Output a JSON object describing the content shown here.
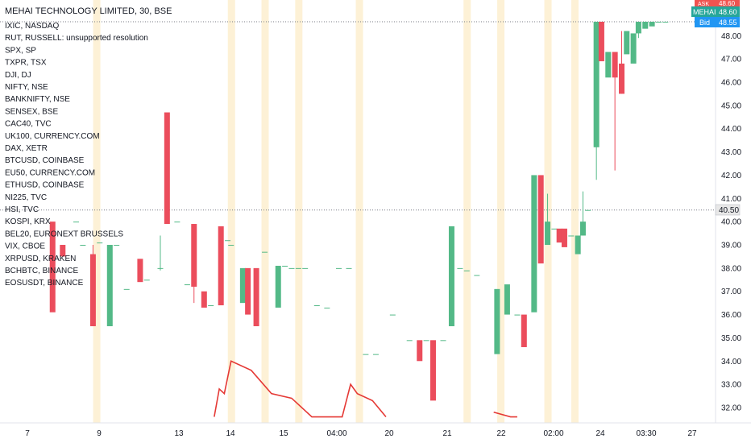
{
  "title": "MEHAI TECHNOLOGY LIMITED, 30, BSE",
  "legend": [
    "IXIC, NASDAQ",
    "RUT, RUSSELL: unsupported resolution",
    "SPX, SP",
    "TXPR, TSX",
    "DJI, DJ",
    "NIFTY, NSE",
    "BANKNIFTY, NSE",
    "SENSEX, BSE",
    "CAC40, TVC",
    "UK100, CURRENCY.COM",
    "DAX, XETR",
    "BTCUSD, COINBASE",
    "EU50, CURRENCY.COM",
    "ETHUSD, COINBASE",
    "NI225, TVC",
    "HSI, TVC",
    "KOSPI, KRX",
    "BEL20, EURONEXT BRUSSELS",
    "VIX, CBOE",
    "XRPUSD, KRAKEN",
    "BCHBTC, BINANCE",
    "EOSUSDT, BINANCE"
  ],
  "badges": {
    "ask": {
      "label": "ASK",
      "value": "48.60",
      "color": "#ef5350"
    },
    "symbol": {
      "label": "MEHAI",
      "value": "48.60",
      "color": "#26a69a"
    },
    "bid": {
      "label": "Bid",
      "value": "48.55",
      "color": "#2196f3"
    },
    "price_marker": "40.50"
  },
  "colors": {
    "up": "#53b987",
    "down": "#eb4d5c",
    "session": "#fdf1d6",
    "overlay": "#e53935",
    "dotted": "#787b86"
  },
  "chart_data": {
    "type": "candlestick",
    "title": "MEHAI TECHNOLOGY LIMITED, 30, BSE",
    "ylim": [
      31.6,
      48.6
    ],
    "yticks": [
      32,
      33,
      34,
      35,
      36,
      37,
      38,
      39,
      40,
      41,
      42,
      43,
      44,
      45,
      46,
      47,
      48
    ],
    "xticks": [
      "7",
      "9",
      "13",
      "14",
      "15",
      "04:00",
      "20",
      "21",
      "22",
      "02:00",
      "24",
      "03:30",
      "27"
    ],
    "session_breaks": [
      9,
      13,
      14,
      15,
      16.8,
      20,
      21,
      22.4,
      23.2
    ],
    "reference_lines": [
      48.6,
      40.5
    ],
    "candles": [
      {
        "x": 7.7,
        "o": 40.0,
        "h": 40.0,
        "l": 36.1,
        "c": 36.1
      },
      {
        "x": 8.0,
        "o": 39.0,
        "h": 39.0,
        "l": 38.5,
        "c": 38.5
      },
      {
        "x": 8.4,
        "o": 40.0,
        "h": 40.0,
        "l": 40.0,
        "c": 40.0
      },
      {
        "x": 8.6,
        "o": 39.0,
        "h": 39.0,
        "l": 39.0,
        "c": 39.0
      },
      {
        "x": 8.9,
        "o": 38.6,
        "h": 39.0,
        "l": 35.5,
        "c": 35.5
      },
      {
        "x": 9.1,
        "o": 39.1,
        "h": 39.1,
        "l": 39.1,
        "c": 39.1
      },
      {
        "x": 9.4,
        "o": 35.5,
        "h": 39.0,
        "l": 35.5,
        "c": 39.0
      },
      {
        "x": 9.6,
        "o": 39.0,
        "h": 39.0,
        "l": 39.0,
        "c": 39.0
      },
      {
        "x": 9.9,
        "o": 37.1,
        "h": 37.1,
        "l": 37.1,
        "c": 37.1
      },
      {
        "x": 10.3,
        "o": 38.4,
        "h": 38.4,
        "l": 37.4,
        "c": 37.4
      },
      {
        "x": 10.5,
        "o": 37.5,
        "h": 37.5,
        "l": 37.5,
        "c": 37.5
      },
      {
        "x": 10.9,
        "o": 38.0,
        "h": 39.4,
        "l": 37.9,
        "c": 38.0
      },
      {
        "x": 11.1,
        "o": 44.7,
        "h": 44.7,
        "l": 39.9,
        "c": 39.9
      },
      {
        "x": 11.4,
        "o": 40.0,
        "h": 40.0,
        "l": 40.0,
        "c": 40.0
      },
      {
        "x": 11.7,
        "o": 37.3,
        "h": 37.3,
        "l": 37.3,
        "c": 37.3
      },
      {
        "x": 11.9,
        "o": 39.9,
        "h": 39.9,
        "l": 36.5,
        "c": 37.2
      },
      {
        "x": 12.2,
        "o": 37.0,
        "h": 37.0,
        "l": 36.3,
        "c": 36.3
      },
      {
        "x": 12.4,
        "o": 36.4,
        "h": 36.4,
        "l": 36.4,
        "c": 36.4
      },
      {
        "x": 12.7,
        "o": 39.8,
        "h": 39.8,
        "l": 36.4,
        "c": 36.4
      },
      {
        "x": 12.9,
        "o": 39.2,
        "h": 39.2,
        "l": 39.2,
        "c": 39.2
      },
      {
        "x": 13.0,
        "o": 39.0,
        "h": 39.0,
        "l": 39.0,
        "c": 39.0
      },
      {
        "x": 13.35,
        "o": 36.5,
        "h": 38.0,
        "l": 36.5,
        "c": 38.0
      },
      {
        "x": 13.5,
        "o": 38.0,
        "h": 38.0,
        "l": 36.0,
        "c": 36.0
      },
      {
        "x": 13.75,
        "o": 38.0,
        "h": 38.0,
        "l": 35.5,
        "c": 35.5
      },
      {
        "x": 14.0,
        "o": 38.7,
        "h": 38.7,
        "l": 38.7,
        "c": 38.7
      },
      {
        "x": 14.4,
        "o": 36.3,
        "h": 38.1,
        "l": 36.3,
        "c": 38.1
      },
      {
        "x": 14.6,
        "o": 38.1,
        "h": 38.1,
        "l": 38.1,
        "c": 38.1
      },
      {
        "x": 14.8,
        "o": 38.0,
        "h": 38.0,
        "l": 38.0,
        "c": 38.0
      },
      {
        "x": 15.0,
        "o": 38.0,
        "h": 38.0,
        "l": 38.0,
        "c": 38.0
      },
      {
        "x": 15.2,
        "o": 38.0,
        "h": 38.0,
        "l": 38.0,
        "c": 38.0
      },
      {
        "x": 15.55,
        "o": 36.4,
        "h": 36.4,
        "l": 36.4,
        "c": 36.4
      },
      {
        "x": 15.85,
        "o": 36.3,
        "h": 36.3,
        "l": 36.3,
        "c": 36.3
      },
      {
        "x": 16.2,
        "o": 38.0,
        "h": 38.0,
        "l": 38.0,
        "c": 38.0
      },
      {
        "x": 16.5,
        "o": 38.0,
        "h": 38.0,
        "l": 38.0,
        "c": 38.0
      },
      {
        "x": 17.0,
        "o": 34.3,
        "h": 34.3,
        "l": 34.3,
        "c": 34.3
      },
      {
        "x": 17.3,
        "o": 34.3,
        "h": 34.3,
        "l": 34.3,
        "c": 34.3
      },
      {
        "x": 17.8,
        "o": 36.0,
        "h": 36.0,
        "l": 36.0,
        "c": 36.0
      },
      {
        "x": 18.3,
        "o": 34.9,
        "h": 34.9,
        "l": 34.9,
        "c": 34.9
      },
      {
        "x": 18.6,
        "o": 34.9,
        "h": 34.9,
        "l": 34.0,
        "c": 34.0
      },
      {
        "x": 18.8,
        "o": 34.9,
        "h": 34.9,
        "l": 34.9,
        "c": 34.9
      },
      {
        "x": 19.0,
        "o": 34.9,
        "h": 34.9,
        "l": 32.3,
        "c": 32.3
      },
      {
        "x": 19.3,
        "o": 34.9,
        "h": 34.9,
        "l": 34.9,
        "c": 34.9
      },
      {
        "x": 19.55,
        "o": 35.5,
        "h": 39.8,
        "l": 35.5,
        "c": 39.8
      },
      {
        "x": 19.8,
        "o": 38.0,
        "h": 38.0,
        "l": 38.0,
        "c": 38.0
      },
      {
        "x": 20.0,
        "o": 37.9,
        "h": 37.9,
        "l": 37.9,
        "c": 37.9
      },
      {
        "x": 20.3,
        "o": 37.7,
        "h": 37.7,
        "l": 37.7,
        "c": 37.7
      },
      {
        "x": 20.9,
        "o": 34.3,
        "h": 37.1,
        "l": 34.3,
        "c": 37.1
      },
      {
        "x": 21.2,
        "o": 36.0,
        "h": 37.3,
        "l": 36.0,
        "c": 37.3
      },
      {
        "x": 21.5,
        "o": 36.0,
        "h": 36.0,
        "l": 36.0,
        "c": 36.0
      },
      {
        "x": 21.7,
        "o": 36.0,
        "h": 36.0,
        "l": 34.6,
        "c": 34.6
      },
      {
        "x": 22.0,
        "o": 36.1,
        "h": 42.0,
        "l": 36.1,
        "c": 42.0
      },
      {
        "x": 22.2,
        "o": 42.0,
        "h": 42.0,
        "l": 38.2,
        "c": 38.2
      },
      {
        "x": 22.4,
        "o": 39.0,
        "h": 41.2,
        "l": 39.0,
        "c": 40.0
      },
      {
        "x": 22.6,
        "o": 39.7,
        "h": 39.7,
        "l": 39.7,
        "c": 39.7
      },
      {
        "x": 22.75,
        "o": 39.7,
        "h": 39.7,
        "l": 39.1,
        "c": 39.1
      },
      {
        "x": 22.9,
        "o": 39.7,
        "h": 39.7,
        "l": 38.9,
        "c": 38.9
      },
      {
        "x": 23.1,
        "o": 39.4,
        "h": 39.4,
        "l": 39.4,
        "c": 39.4
      },
      {
        "x": 23.3,
        "o": 38.6,
        "h": 39.4,
        "l": 38.6,
        "c": 39.4
      },
      {
        "x": 23.45,
        "o": 39.4,
        "h": 41.3,
        "l": 39.4,
        "c": 40.0
      },
      {
        "x": 23.6,
        "o": 40.5,
        "h": 40.5,
        "l": 40.5,
        "c": 40.5
      },
      {
        "x": 23.85,
        "o": 43.2,
        "h": 48.6,
        "l": 41.8,
        "c": 48.6
      },
      {
        "x": 24.0,
        "o": 48.6,
        "h": 48.6,
        "l": 46.9,
        "c": 46.9
      },
      {
        "x": 24.2,
        "o": 46.2,
        "h": 47.3,
        "l": 46.2,
        "c": 47.3
      },
      {
        "x": 24.4,
        "o": 47.3,
        "h": 47.3,
        "l": 42.2,
        "c": 46.2
      },
      {
        "x": 24.6,
        "o": 46.8,
        "h": 48.2,
        "l": 45.5,
        "c": 45.5
      },
      {
        "x": 24.75,
        "o": 47.2,
        "h": 48.2,
        "l": 47.2,
        "c": 48.2
      },
      {
        "x": 24.95,
        "o": 46.8,
        "h": 48.1,
        "l": 46.8,
        "c": 48.1
      },
      {
        "x": 25.1,
        "o": 48.1,
        "h": 48.6,
        "l": 47.9,
        "c": 48.6
      },
      {
        "x": 25.3,
        "o": 48.3,
        "h": 48.6,
        "l": 48.3,
        "c": 48.6
      },
      {
        "x": 25.5,
        "o": 48.4,
        "h": 48.6,
        "l": 48.4,
        "c": 48.6
      },
      {
        "x": 25.7,
        "o": 48.6,
        "h": 48.6,
        "l": 48.6,
        "c": 48.6
      },
      {
        "x": 25.9,
        "o": 48.6,
        "h": 48.6,
        "l": 48.6,
        "c": 48.6
      }
    ],
    "overlay_line": {
      "x": [
        12.5,
        12.65,
        12.8,
        13.0,
        13.6,
        14.2,
        14.8,
        15.4,
        16.3,
        16.55,
        16.75,
        17.2,
        17.6
      ],
      "y": [
        31.6,
        32.8,
        32.6,
        34.0,
        33.6,
        32.6,
        32.4,
        31.6,
        31.6,
        33.0,
        32.6,
        32.3,
        31.6
      ]
    },
    "overlay_line_2": {
      "x": [
        20.8,
        21.3,
        21.5
      ],
      "y": [
        31.8,
        31.6,
        31.6
      ]
    }
  }
}
